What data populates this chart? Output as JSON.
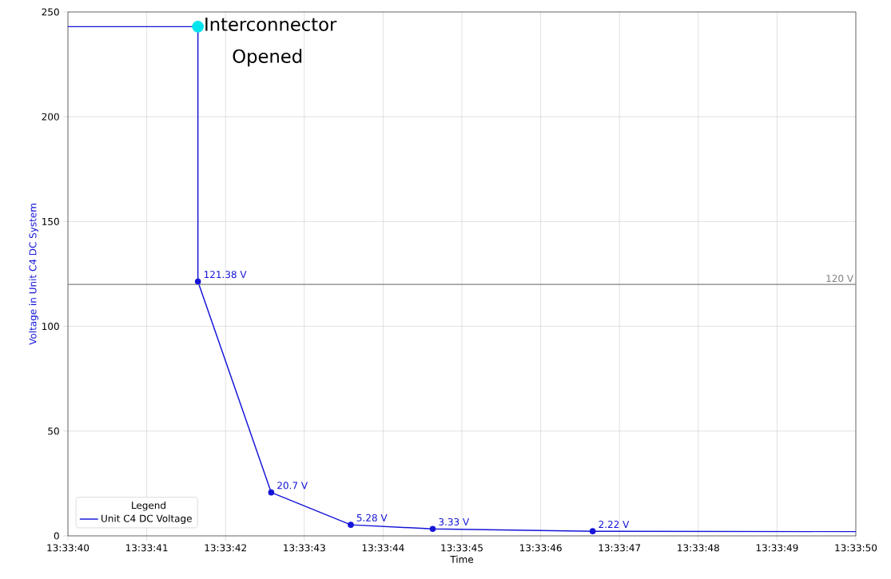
{
  "chart_data": {
    "type": "line",
    "xlabel": "Time",
    "ylabel": "Voltage in Unit C4 DC System",
    "xlim": [
      13.5611111,
      13.5638889
    ],
    "ylim": [
      0,
      250
    ],
    "xticks": [
      {
        "value": 13.5611111,
        "label": "13:33:40"
      },
      {
        "value": 13.5613889,
        "label": "13:33:41"
      },
      {
        "value": 13.5616667,
        "label": "13:33:42"
      },
      {
        "value": 13.5619444,
        "label": "13:33:43"
      },
      {
        "value": 13.5622222,
        "label": "13:33:44"
      },
      {
        "value": 13.5625,
        "label": "13:33:45"
      },
      {
        "value": 13.5627778,
        "label": "13:33:46"
      },
      {
        "value": 13.5630556,
        "label": "13:33:47"
      },
      {
        "value": 13.5633333,
        "label": "13:33:48"
      },
      {
        "value": 13.5636111,
        "label": "13:33:49"
      },
      {
        "value": 13.5638889,
        "label": "13:33:50"
      }
    ],
    "yticks": [
      0,
      50,
      100,
      150,
      200,
      250
    ],
    "grid": true,
    "legend": "bottom left",
    "legend_title": "Legend",
    "series": [
      {
        "name": "Unit C4 DC Voltage",
        "marker": "none",
        "color": "#1515d8",
        "x": [
          13.5611111,
          13.5615694,
          13.5615694,
          13.5618278,
          13.5621083,
          13.5623972,
          13.5629611,
          13.5638889
        ],
        "values": [
          243,
          243,
          121.38,
          20.7,
          5.28,
          3.33,
          2.22,
          2.0
        ]
      },
      {
        "type": "scatter",
        "marker": "circle",
        "color": "#1515d8",
        "x": [
          13.5615694,
          13.5618278,
          13.5621083,
          13.5623972,
          13.5629611
        ],
        "values": [
          121.38,
          20.7,
          5.28,
          3.33,
          2.22
        ],
        "value_labels": [
          "121.38 V",
          "20.7 V",
          "5.28 V",
          "3.33 V",
          "2.22 V"
        ]
      },
      {
        "type": "scatter",
        "marker": "circle",
        "color": "#00e5ee",
        "x": [
          13.5615694
        ],
        "values": [
          243
        ]
      }
    ],
    "ref_lines": [
      {
        "axis": "y",
        "value": 120,
        "label": "120 V",
        "color": "#808080"
      }
    ],
    "annotations": [
      {
        "text": "Interconnector Opened",
        "x": 13.5615694,
        "y": 243
      }
    ]
  }
}
